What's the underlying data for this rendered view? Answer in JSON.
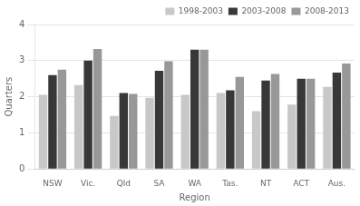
{
  "chart_data": {
    "type": "bar",
    "categories": [
      "NSW",
      "Vic.",
      "Qld",
      "SA",
      "WA",
      "Tas.",
      "NT",
      "ACT",
      "Aus."
    ],
    "series": [
      {
        "name": "1998-2003",
        "color": "#c8c8c8",
        "values": [
          2.05,
          2.32,
          1.47,
          1.97,
          2.05,
          2.1,
          1.6,
          1.78,
          2.27
        ]
      },
      {
        "name": "2003-2008",
        "color": "#383838",
        "values": [
          2.6,
          3.0,
          2.1,
          2.72,
          3.3,
          2.18,
          2.45,
          2.5,
          2.67
        ]
      },
      {
        "name": "2008-2013",
        "color": "#989898",
        "values": [
          2.75,
          3.32,
          2.08,
          2.98,
          3.3,
          2.55,
          2.63,
          2.5,
          2.92
        ]
      }
    ],
    "xlabel": "Region",
    "ylabel": "Quarters",
    "ylim": [
      0,
      4
    ],
    "yticks": [
      0,
      1,
      2,
      3,
      4
    ],
    "grid": true,
    "legend": "upper right"
  }
}
